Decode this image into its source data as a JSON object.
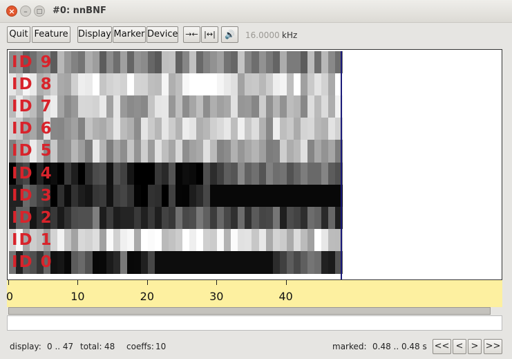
{
  "window": {
    "title": "#0: nnBNF"
  },
  "toolbar": {
    "quit": "Quit",
    "feature": "Feature",
    "display": "Display",
    "marker": "Marker",
    "device": "Device",
    "zoom_in_icon": "→←",
    "zoom_out_icon": "|↔|",
    "speaker_icon": "🔊",
    "frequency": "16.0000",
    "frequency_unit": "kHz"
  },
  "heatmap": {
    "row_labels": [
      "ID 9",
      "ID 8",
      "ID 7",
      "ID 6",
      "ID 5",
      "ID 4",
      "ID 3",
      "ID 2",
      "ID 1",
      "ID 0"
    ],
    "columns": 48,
    "colors": {
      "label": "#d8232b",
      "cursor": "#1a1a7a"
    }
  },
  "axis": {
    "ticks": [
      "0",
      "10",
      "20",
      "30",
      "40"
    ],
    "tick_values": [
      0,
      10,
      20,
      30,
      40
    ],
    "max": 48,
    "background": "#fdf0a0"
  },
  "status": {
    "display_label": "display:",
    "display_range": "0 .. 47",
    "total_label": "total:",
    "total_value": "48",
    "coeffs_label": "coeffs:",
    "coeffs_value": "10",
    "marked_label": "marked:",
    "marked_value": "0.48 .. 0.48 s",
    "nav_first": "<<",
    "nav_prev": "<",
    "nav_next": ">",
    "nav_last": ">>"
  }
}
